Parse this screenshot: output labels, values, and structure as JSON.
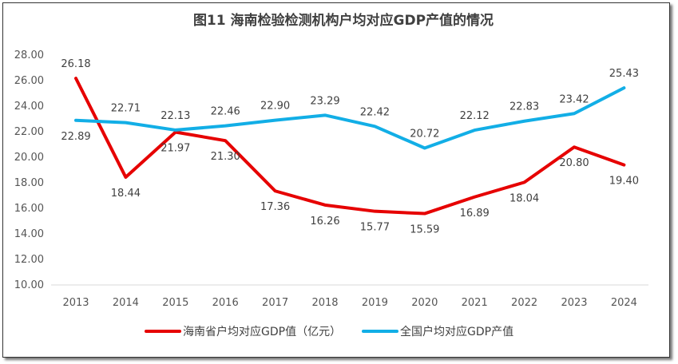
{
  "chart_data": {
    "type": "line",
    "title": "图11  海南检验检测机构户均对应GDP产值的情况",
    "categories": [
      "2013",
      "2014",
      "2015",
      "2016",
      "2017",
      "2018",
      "2019",
      "2020",
      "2021",
      "2022",
      "2023",
      "2024"
    ],
    "series": [
      {
        "name": "海南省户均对应GDP值（亿元）",
        "color": "#e60000",
        "values": [
          26.18,
          18.44,
          21.97,
          21.3,
          17.36,
          16.26,
          15.77,
          15.59,
          16.89,
          18.04,
          20.8,
          19.4
        ],
        "labels": [
          "26.18",
          "18.44",
          "21.97",
          "21.30",
          "17.36",
          "16.26",
          "15.77",
          "15.59",
          "16.89",
          "18.04",
          "20.80",
          "19.40"
        ]
      },
      {
        "name": "全国户均对应GDP产值",
        "color": "#12aee6",
        "values": [
          22.89,
          22.71,
          22.13,
          22.46,
          22.9,
          23.29,
          22.42,
          20.72,
          22.12,
          22.83,
          23.42,
          25.43
        ],
        "labels": [
          "22.89",
          "22.71",
          "22.13",
          "22.46",
          "22.90",
          "23.29",
          "22.42",
          "20.72",
          "22.12",
          "22.83",
          "23.42",
          "25.43"
        ]
      }
    ],
    "ylim": [
      10,
      28
    ],
    "yticks": [
      "10.00",
      "12.00",
      "14.00",
      "16.00",
      "18.00",
      "20.00",
      "22.00",
      "24.00",
      "26.00",
      "28.00"
    ],
    "grid": false,
    "legend": "bottom"
  }
}
